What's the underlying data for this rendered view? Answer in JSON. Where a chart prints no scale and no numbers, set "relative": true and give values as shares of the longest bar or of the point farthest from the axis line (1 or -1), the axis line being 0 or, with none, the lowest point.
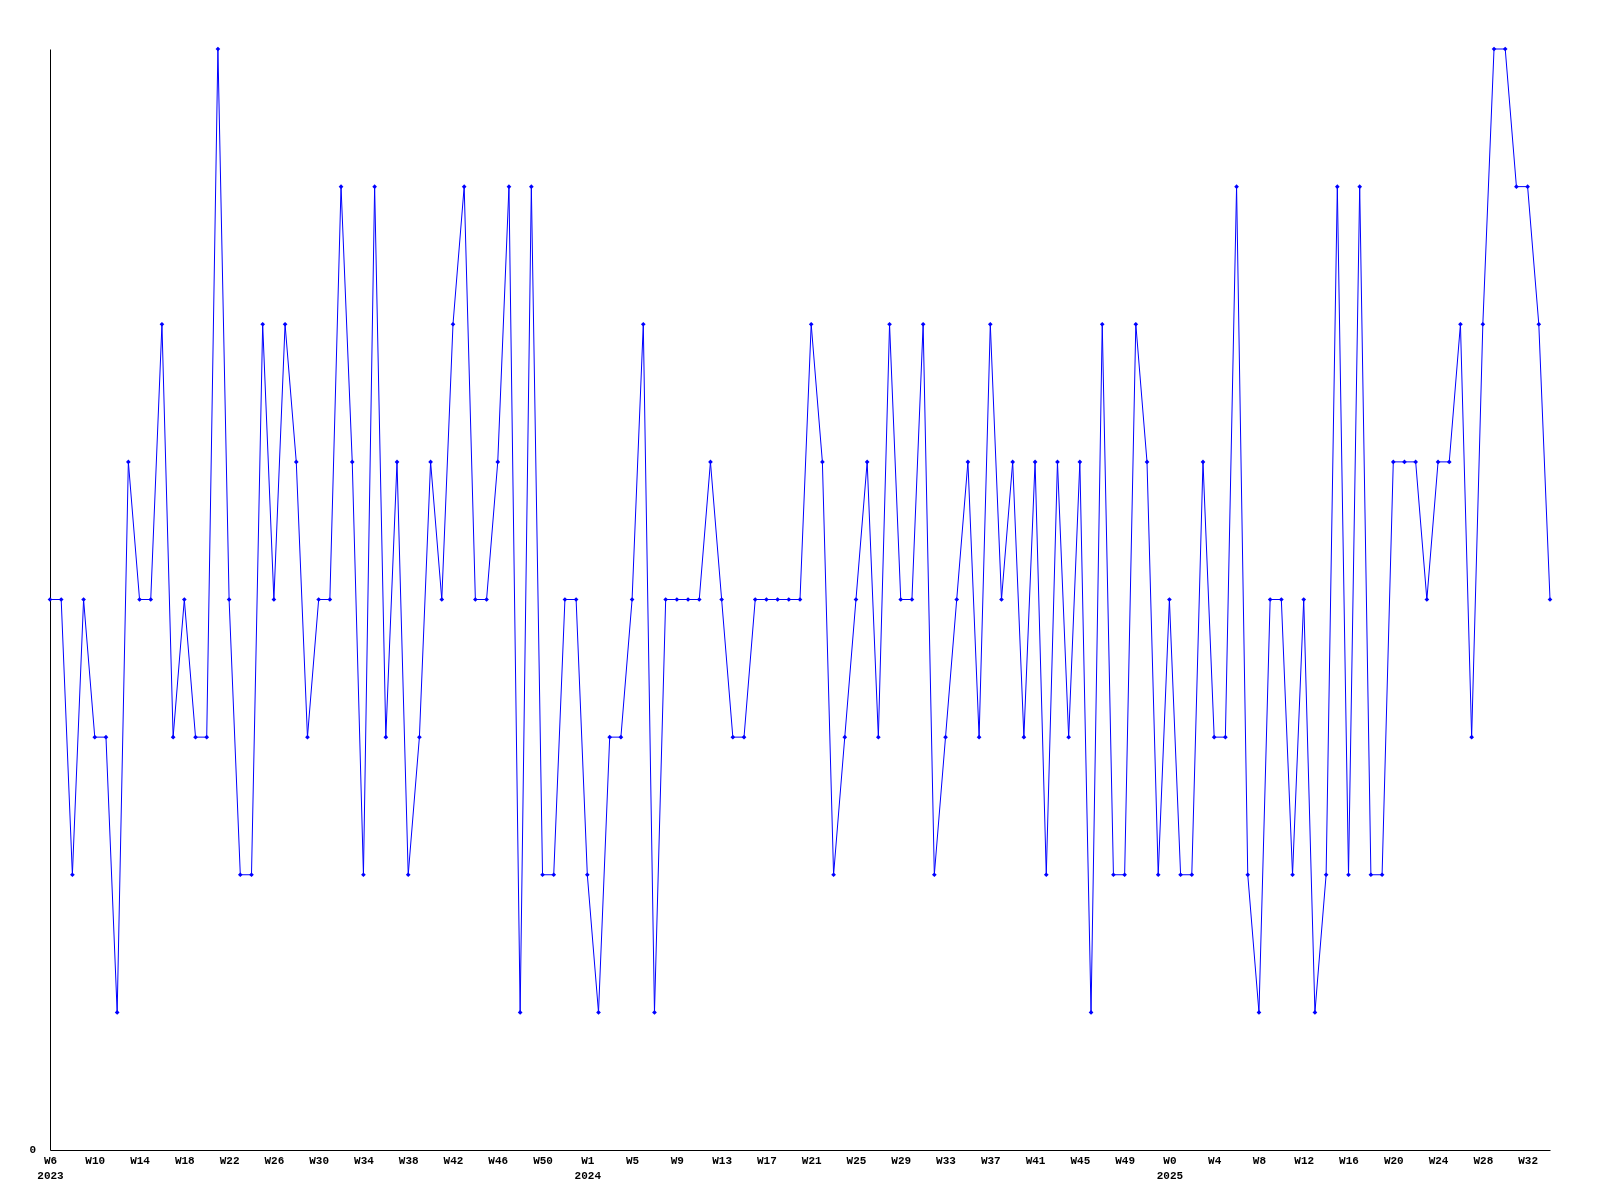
{
  "chart_data": {
    "type": "line",
    "relative": true,
    "color": "#0000ff",
    "marker": "diamond",
    "annotations": [
      "0"
    ],
    "categories": [
      "W6\n2023",
      null,
      null,
      null,
      "W10",
      null,
      null,
      null,
      "W14",
      null,
      null,
      null,
      "W18",
      null,
      null,
      null,
      "W22",
      null,
      null,
      null,
      "W26",
      null,
      null,
      null,
      "W30",
      null,
      null,
      null,
      "W34",
      null,
      null,
      null,
      "W38",
      null,
      null,
      null,
      "W42",
      null,
      null,
      null,
      "W46",
      null,
      null,
      null,
      "W50",
      null,
      null,
      null,
      "W1\n2024",
      null,
      null,
      null,
      "W5",
      null,
      null,
      null,
      "W9",
      null,
      null,
      null,
      "W13",
      null,
      null,
      null,
      "W17",
      null,
      null,
      null,
      "W21",
      null,
      null,
      null,
      "W25",
      null,
      null,
      null,
      "W29",
      null,
      null,
      null,
      "W33",
      null,
      null,
      null,
      "W37",
      null,
      null,
      null,
      "W41",
      null,
      null,
      null,
      "W45",
      null,
      null,
      null,
      "W49",
      null,
      null,
      null,
      "W0\n2025",
      null,
      null,
      null,
      "W4",
      null,
      null,
      null,
      "W8",
      null,
      null,
      null,
      "W12",
      null,
      null,
      null,
      "W16",
      null,
      null,
      null,
      "W20",
      null,
      null,
      null,
      "W24",
      null,
      null,
      null,
      "W28",
      null,
      null,
      null,
      "W32",
      null,
      null
    ],
    "values": [
      0.5,
      0.5,
      0.25,
      0.5,
      0.375,
      0.375,
      0.125,
      0.625,
      0.5,
      0.5,
      0.75,
      0.375,
      0.5,
      0.375,
      0.375,
      1,
      0.5,
      0.25,
      0.25,
      0.75,
      0.5,
      0.75,
      0.625,
      0.375,
      0.5,
      0.5,
      0.875,
      0.625,
      0.25,
      0.875,
      0.375,
      0.625,
      0.25,
      0.375,
      0.625,
      0.5,
      0.75,
      0.875,
      0.5,
      0.5,
      0.625,
      0.875,
      0.125,
      0.875,
      0.25,
      0.25,
      0.5,
      0.5,
      0.25,
      0.125,
      0.375,
      0.375,
      0.5,
      0.75,
      0.125,
      0.5,
      0.5,
      0.5,
      0.5,
      0.625,
      0.5,
      0.375,
      0.375,
      0.5,
      0.5,
      0.5,
      0.5,
      0.5,
      0.75,
      0.625,
      0.25,
      0.375,
      0.5,
      0.625,
      0.375,
      0.75,
      0.5,
      0.5,
      0.75,
      0.25,
      0.375,
      0.5,
      0.625,
      0.375,
      0.75,
      0.5,
      0.625,
      0.375,
      0.625,
      0.25,
      0.625,
      0.375,
      0.625,
      0.125,
      0.75,
      0.25,
      0.25,
      0.75,
      0.625,
      0.25,
      0.5,
      0.25,
      0.25,
      0.625,
      0.375,
      0.375,
      0.875,
      0.25,
      0.125,
      0.5,
      0.5,
      0.25,
      0.5,
      0.125,
      0.25,
      0.875,
      0.25,
      0.875,
      0.25,
      0.25,
      0.625,
      0.625,
      0.625,
      0.5,
      0.625,
      0.625,
      0.75,
      0.375,
      0.75,
      1,
      1,
      0.875,
      0.875,
      0.75,
      0.5
    ]
  }
}
